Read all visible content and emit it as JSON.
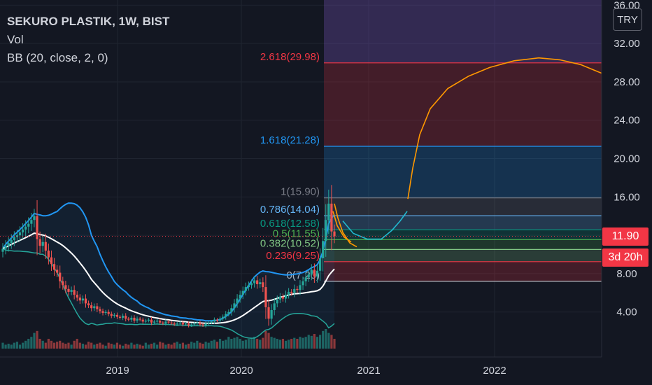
{
  "header": {
    "title": "SEKURO PLASTIK, 1W, BIST",
    "volume_label": "Vol",
    "bb_label": "BB (20, close, 2, 0)",
    "currency_button": "TRY"
  },
  "tags": {
    "last_price": "11.90",
    "countdown": "3d 20h"
  },
  "colors": {
    "background": "#131722",
    "grid": "#1f2430",
    "axis_text": "#d1d4dc",
    "up_candle": "#26a69a",
    "down_candle": "#ef5350",
    "bb_basis": "#ffffff",
    "bb_upper": "#2196f3",
    "bb_lower": "#26a69a",
    "fib_curve": "#ff9800",
    "cyan_curve": "#22b8cf",
    "price_tag": "#f23645"
  },
  "chart_data": {
    "type": "candlestick",
    "title": "SEKURO PLASTIK, 1W, BIST",
    "y_axis": {
      "ticks": [
        4.0,
        8.0,
        12.0,
        16.0,
        20.0,
        24.0,
        28.0,
        32.0,
        36.0
      ],
      "ylim": [
        0,
        36.5
      ]
    },
    "x_axis": {
      "ticks": [
        "2019",
        "2020",
        "2021",
        "2022"
      ]
    },
    "fibonacci": [
      {
        "level": "0",
        "price": 7.2,
        "label": "0(7.20)",
        "color": "#b2b5be"
      },
      {
        "level": "0.236",
        "price": 9.25,
        "label": "0.236(9.25)",
        "color": "#f23645"
      },
      {
        "level": "0.382",
        "price": 10.52,
        "label": "0.382(10.52)",
        "color": "#81c784"
      },
      {
        "level": "0.5",
        "price": 11.55,
        "label": "0.5(11.55)",
        "color": "#4caf50"
      },
      {
        "level": "0.618",
        "price": 12.58,
        "label": "0.618(12.58)",
        "color": "#089981"
      },
      {
        "level": "0.786",
        "price": 14.04,
        "label": "0.786(14.04)",
        "color": "#64b5f6"
      },
      {
        "level": "1",
        "price": 15.9,
        "label": "1(15.90)",
        "color": "#787b86"
      },
      {
        "level": "1.618",
        "price": 21.28,
        "label": "1.618(21.28)",
        "color": "#2196f3"
      },
      {
        "level": "2.618",
        "price": 29.98,
        "label": "2.618(29.98)",
        "color": "#f23645"
      }
    ],
    "closes": [
      10.6,
      10.9,
      11.2,
      11.5,
      11.8,
      12.0,
      12.3,
      12.6,
      12.9,
      13.2,
      13.6,
      14.0,
      11.6,
      10.9,
      11.3,
      10.4,
      9.7,
      9.0,
      8.4,
      8.1,
      7.2,
      6.8,
      6.4,
      6.1,
      6.3,
      5.8,
      5.5,
      5.2,
      5.4,
      4.9,
      4.7,
      4.4,
      4.6,
      4.3,
      4.1,
      3.9,
      4.0,
      3.8,
      3.6,
      3.7,
      3.5,
      3.4,
      3.6,
      3.3,
      3.2,
      3.4,
      3.1,
      3.3,
      3.2,
      3.0,
      3.1,
      3.2,
      2.9,
      3.0,
      3.1,
      2.9,
      2.8,
      3.0,
      2.9,
      2.8,
      2.7,
      2.8,
      2.9,
      2.7,
      2.8,
      2.6,
      2.7,
      2.8,
      2.9,
      2.7,
      2.6,
      2.8,
      2.9,
      3.0,
      3.2,
      3.1,
      3.3,
      3.5,
      3.8,
      4.0,
      4.4,
      4.9,
      5.4,
      5.8,
      6.2,
      6.6,
      6.8,
      7.0,
      7.3,
      6.9,
      7.1,
      6.6,
      4.5,
      3.3,
      4.2,
      4.9,
      5.3,
      5.6,
      5.4,
      5.8,
      6.1,
      6.0,
      6.4,
      6.3,
      6.8,
      7.2,
      7.6,
      7.9,
      8.4,
      7.7,
      8.3,
      9.6,
      11.4,
      13.6,
      15.3,
      12.4,
      11.9
    ],
    "volumes": [
      0.3,
      0.2,
      0.25,
      0.2,
      0.3,
      0.35,
      0.2,
      0.3,
      0.4,
      0.5,
      0.6,
      0.8,
      0.9,
      0.5,
      0.4,
      0.3,
      0.5,
      0.4,
      0.3,
      0.35,
      0.4,
      0.3,
      0.25,
      0.3,
      0.2,
      0.4,
      0.5,
      0.3,
      0.25,
      0.2,
      0.35,
      0.3,
      0.2,
      0.25,
      0.3,
      0.2,
      0.15,
      0.3,
      0.25,
      0.2,
      0.3,
      0.2,
      0.15,
      0.25,
      0.2,
      0.3,
      0.2,
      0.25,
      0.2,
      0.15,
      0.3,
      0.2,
      0.25,
      0.3,
      0.2,
      0.35,
      0.3,
      0.2,
      0.25,
      0.2,
      0.3,
      0.35,
      0.25,
      0.3,
      0.2,
      0.25,
      0.35,
      0.3,
      0.4,
      0.3,
      0.25,
      0.35,
      0.3,
      0.4,
      0.45,
      0.35,
      0.5,
      0.4,
      0.45,
      0.6,
      0.5,
      0.55,
      0.6,
      0.5,
      0.4,
      0.45,
      0.5,
      0.55,
      0.6,
      0.5,
      0.45,
      0.55,
      0.9,
      0.8,
      0.6,
      0.55,
      0.5,
      0.45,
      0.5,
      0.4,
      0.45,
      0.5,
      0.55,
      0.5,
      0.6,
      0.55,
      0.6,
      0.7,
      0.65,
      0.75,
      0.6,
      0.7,
      0.9,
      1.0,
      0.8,
      0.7,
      0.5
    ]
  }
}
